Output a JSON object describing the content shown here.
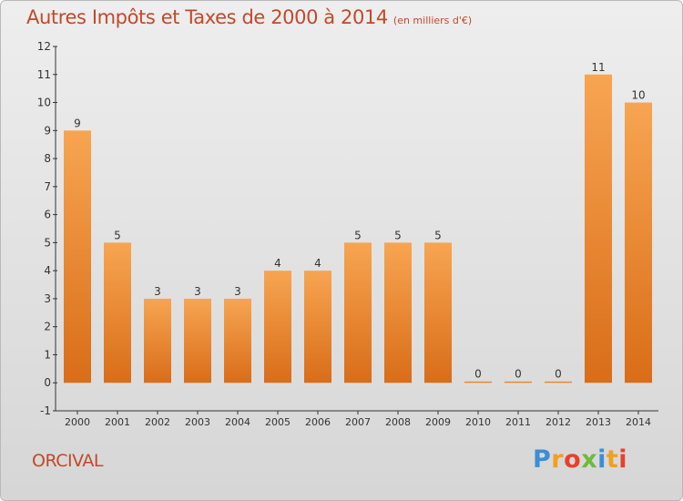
{
  "chart_data": {
    "type": "bar",
    "title": "Autres Impôts et Taxes de 2000 à 2014",
    "subtitle": "(en milliers d'€)",
    "categories": [
      "2000",
      "2001",
      "2002",
      "2003",
      "2004",
      "2005",
      "2006",
      "2007",
      "2008",
      "2009",
      "2010",
      "2011",
      "2012",
      "2013",
      "2014"
    ],
    "values": [
      9,
      5,
      3,
      3,
      3,
      4,
      4,
      5,
      5,
      5,
      0,
      0,
      0,
      11,
      10
    ],
    "ylim": [
      -1,
      12
    ],
    "yticks": [
      -1,
      0,
      1,
      2,
      3,
      4,
      5,
      6,
      7,
      8,
      9,
      10,
      11,
      12
    ],
    "grid": false,
    "bar_color": "#f0913a",
    "xlabel": "",
    "ylabel": ""
  },
  "commune": "ORCIVAL",
  "logo": {
    "letters": [
      "P",
      "r",
      "o",
      "x",
      "i",
      "t",
      "i"
    ],
    "colors": [
      "#3a8fd6",
      "#f0a020",
      "#e8412a",
      "#6dbb3a",
      "#3a8fd6",
      "#f0a020",
      "#e8412a"
    ]
  },
  "colors": {
    "title": "#c2492a",
    "axis": "#333333"
  }
}
